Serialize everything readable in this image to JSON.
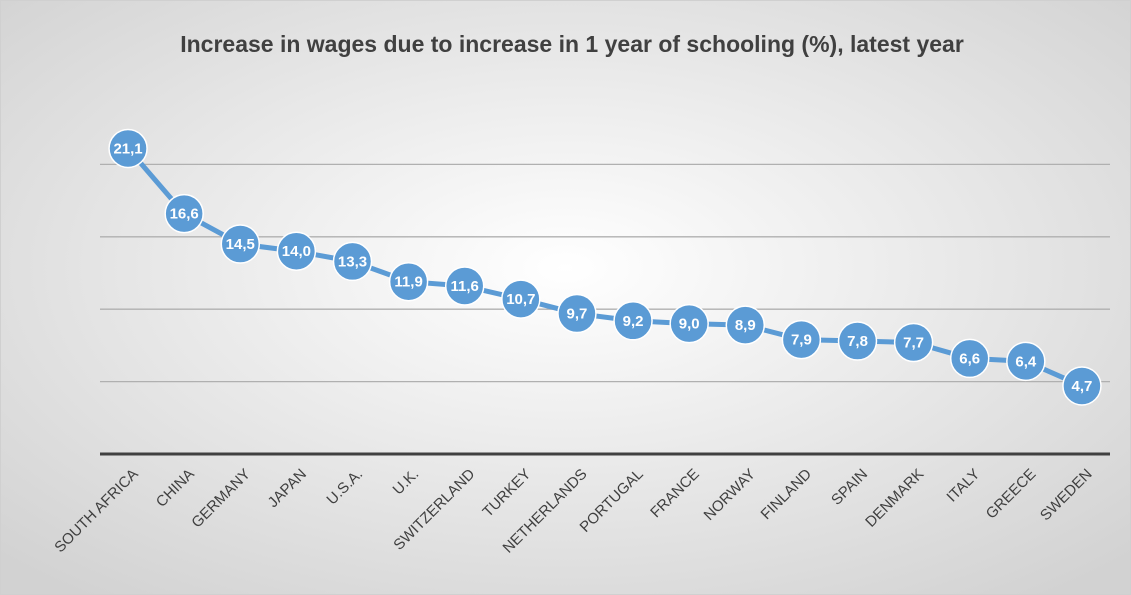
{
  "chart_data": {
    "type": "line",
    "title": "Increase in wages due to increase in 1 year of schooling (%),  latest year",
    "categories": [
      "SOUTH AFRICA",
      "CHINA",
      "GERMANY",
      "JAPAN",
      "U.S.A.",
      "U.K.",
      "SWITZERLAND",
      "TURKEY",
      "NETHERLANDS",
      "PORTUGAL",
      "FRANCE",
      "NORWAY",
      "FINLAND",
      "SPAIN",
      "DENMARK",
      "ITALY",
      "GREECE",
      "SWEDEN"
    ],
    "series": [
      {
        "name": "Increase in wages",
        "color": "#5b9bd5",
        "values": [
          21.1,
          16.6,
          14.5,
          14.0,
          13.3,
          11.9,
          11.6,
          10.7,
          9.7,
          9.2,
          9.0,
          8.9,
          7.9,
          7.8,
          7.7,
          6.6,
          6.4,
          4.7
        ],
        "value_labels": [
          "21,1",
          "16,6",
          "14,5",
          "14,0",
          "13,3",
          "11,9",
          "11,6",
          "10,7",
          "9,7",
          "9,2",
          "9,0",
          "8,9",
          "7,9",
          "7,8",
          "7,7",
          "6,6",
          "6,4",
          "4,7"
        ]
      }
    ],
    "ylim": [
      0,
      25
    ],
    "yticks": [
      0,
      5,
      10,
      15,
      20
    ],
    "grid": true
  }
}
